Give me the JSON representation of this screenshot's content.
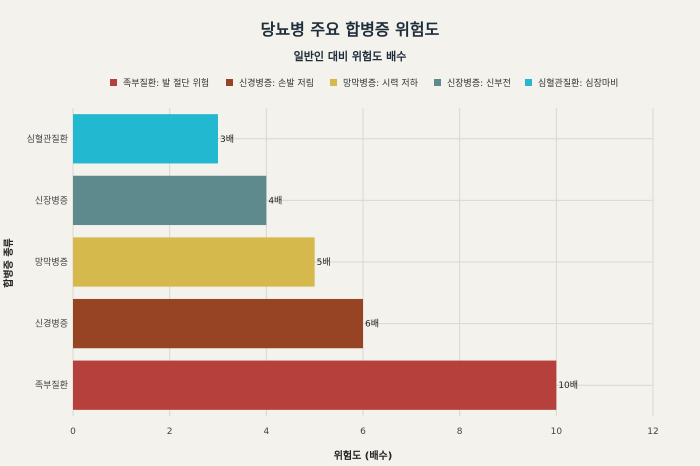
{
  "chart_data": {
    "type": "bar",
    "orientation": "horizontal",
    "title": "당뇨병 주요 합병증 위험도",
    "subtitle": "일반인 대비 위험도 배수",
    "xlabel": "위험도 (배수)",
    "ylabel": "합병증 종류",
    "xlim": [
      0,
      12
    ],
    "xticks": [
      0,
      2,
      4,
      6,
      8,
      10,
      12
    ],
    "grid": true,
    "legend_position": "top",
    "categories": [
      "족부질환",
      "신경병증",
      "망막병증",
      "신장병증",
      "심혈관질환"
    ],
    "values": [
      10,
      6,
      5,
      4,
      3
    ],
    "data_labels": [
      "10배",
      "6배",
      "5배",
      "4배",
      "3배"
    ],
    "colors": [
      "#b5403c",
      "#964424",
      "#d5b94c",
      "#5e8a8e",
      "#22b8cf"
    ],
    "legend": [
      {
        "label": "족부질환: 발 절단 위험",
        "color": "#b5403c"
      },
      {
        "label": "신경병증: 손발 저림",
        "color": "#964424"
      },
      {
        "label": "망막병증: 시력 저하",
        "color": "#d5b94c"
      },
      {
        "label": "신장병증: 신부전",
        "color": "#5e8a8e"
      },
      {
        "label": "심혈관질환: 심장마비",
        "color": "#22b8cf"
      }
    ]
  }
}
